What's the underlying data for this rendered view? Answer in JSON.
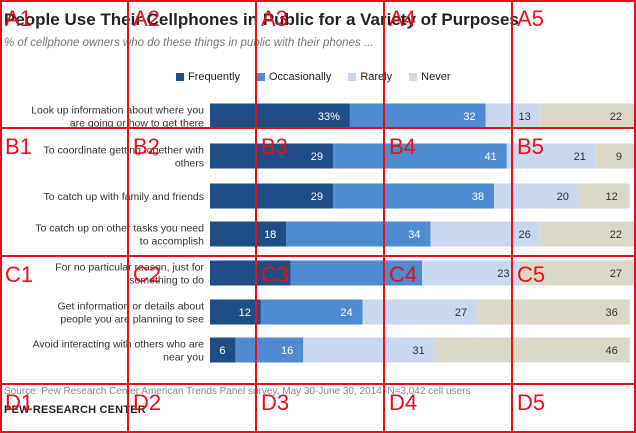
{
  "title": "People Use Their Cellphones in Public for a Variety of Purposes",
  "subtitle": "% of cellphone owners who do these things in public with their phones ...",
  "source": "Source: Pew Research Center American Trends Panel survey, May 30-June 30, 2014. N=3,042 cell users",
  "brand": "PEW RESEARCH CENTER",
  "colors": {
    "frequently": "#1f4e87",
    "occasionally": "#4f8bd1",
    "rarely": "#c8d9ef",
    "never": "#dcd8c8"
  },
  "chart_data": {
    "type": "bar",
    "orientation": "horizontal",
    "stacked": true,
    "title": "People Use Their Cellphones in Public for a Variety of Purposes",
    "subtitle": "% of cellphone owners who do these things in public with their phones ...",
    "legend_position": "top",
    "categories": [
      "Look up information about where you are going or how to get there",
      "To coordinate getting together with others",
      "To catch up with family and friends",
      "To catch up on other tasks you need to accomplish",
      "For no particular reason, just for something to do",
      "Get information or details about people you are planning to see",
      "Avoid interacting with others who are near you"
    ],
    "category_lines": [
      [
        "Look up information about where you",
        "are going or how to get there"
      ],
      [
        "To coordinate getting together with",
        "others"
      ],
      [
        "To catch up with family and friends"
      ],
      [
        "To catch up on other tasks you need",
        "to accomplish"
      ],
      [
        "For no particular reason, just for",
        "something to do"
      ],
      [
        "Get information or details about",
        "people you are planning to see"
      ],
      [
        "Avoid interacting with others who are",
        "near you"
      ]
    ],
    "series": [
      {
        "name": "Frequently",
        "key": "frequently",
        "values": [
          33,
          29,
          29,
          18,
          19,
          12,
          6
        ],
        "labels": [
          "33%",
          "29",
          "29",
          "18",
          "",
          "12",
          "6"
        ]
      },
      {
        "name": "Occasionally",
        "key": "occasionally",
        "values": [
          32,
          41,
          38,
          34,
          31,
          24,
          16
        ],
        "labels": [
          "32",
          "41",
          "38",
          "34",
          "",
          "24",
          "16"
        ]
      },
      {
        "name": "Rarely",
        "key": "rarely",
        "values": [
          13,
          21,
          20,
          26,
          23,
          27,
          31
        ],
        "labels": [
          "13",
          "21",
          "20",
          "26",
          "23",
          "27",
          "31"
        ]
      },
      {
        "name": "Never",
        "key": "never",
        "values": [
          22,
          9,
          12,
          22,
          27,
          36,
          46
        ],
        "labels": [
          "22",
          "9",
          "12",
          "22",
          "27",
          "36",
          "46"
        ]
      }
    ]
  },
  "grid_overlay": {
    "labels": [
      [
        "A1",
        "A2",
        "A3",
        "A4",
        "A5"
      ],
      [
        "B1",
        "B2",
        "B3",
        "B4",
        "B5"
      ],
      [
        "C1",
        "C2",
        "C3",
        "C4",
        "C5"
      ],
      [
        "D1",
        "D2",
        "D3",
        "D4",
        "D5"
      ]
    ],
    "color": "#e8101a"
  }
}
